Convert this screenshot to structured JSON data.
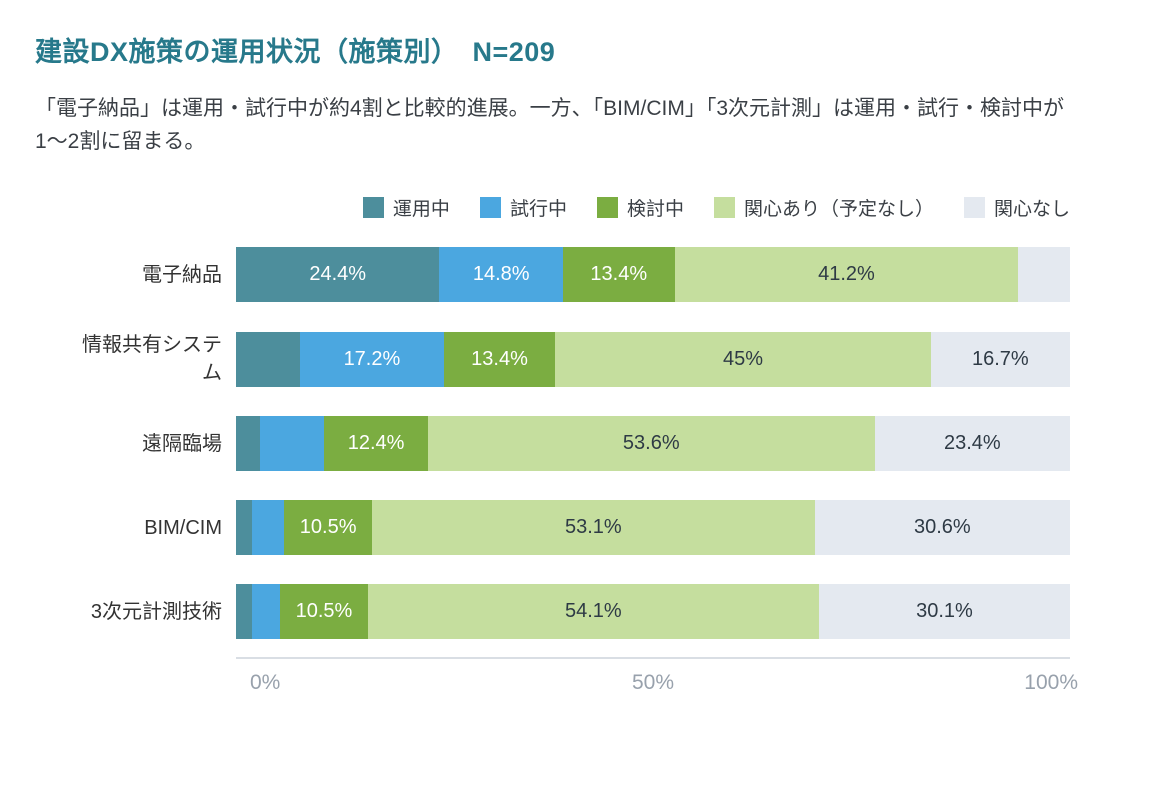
{
  "page": {
    "title": "建設DX施策の運用状況（施策別）　N=209",
    "subtitle": "「電子納品」は運用・試行中が約4割と比較的進展。一方、「BIM/CIM」「3次元計測」は運用・試行・検討中が1〜2割に留まる。"
  },
  "chart_data": {
    "type": "bar",
    "orientation": "horizontal",
    "stacked": true,
    "title": "建設DX施策の運用状況（施策別）　N=209",
    "sample_size": "N=209",
    "categories": [
      "電子納品",
      "情報共有システム",
      "遠隔臨場",
      "BIM/CIM",
      "3次元計測技術"
    ],
    "series": [
      {
        "key": "in-operation",
        "name": "運用中",
        "color": "#4D8E9C",
        "text_color": "#ffffff",
        "values": [
          24.4,
          7.7,
          2.9,
          1.9,
          1.9
        ],
        "show_labels": [
          true,
          false,
          false,
          false,
          false
        ]
      },
      {
        "key": "trial",
        "name": "試行中",
        "color": "#4BA7E0",
        "text_color": "#ffffff",
        "values": [
          14.8,
          17.2,
          7.7,
          3.9,
          3.4
        ],
        "show_labels": [
          true,
          true,
          false,
          false,
          false
        ]
      },
      {
        "key": "considering",
        "name": "検討中",
        "color": "#7BAD41",
        "text_color": "#ffffff",
        "values": [
          13.4,
          13.4,
          12.4,
          10.5,
          10.5
        ],
        "show_labels": [
          true,
          true,
          true,
          true,
          true
        ]
      },
      {
        "key": "interested-no-plan",
        "name": "関心あり（予定なし）",
        "color": "#C5DE9E",
        "text_color": "#2E3A45",
        "values": [
          41.2,
          45,
          53.6,
          53.1,
          54.1
        ],
        "show_labels": [
          true,
          true,
          true,
          true,
          true
        ]
      },
      {
        "key": "not-interested",
        "name": "関心なし",
        "color": "#E4E9F0",
        "text_color": "#2E3A45",
        "values": [
          6.2,
          16.7,
          23.4,
          30.6,
          30.1
        ],
        "show_labels": [
          false,
          true,
          true,
          true,
          true
        ]
      }
    ],
    "value_suffix": "%",
    "xlim": [
      0,
      100
    ],
    "xticks": [
      "0%",
      "50%",
      "100%"
    ],
    "legend_position": "top-right",
    "grid": false
  }
}
